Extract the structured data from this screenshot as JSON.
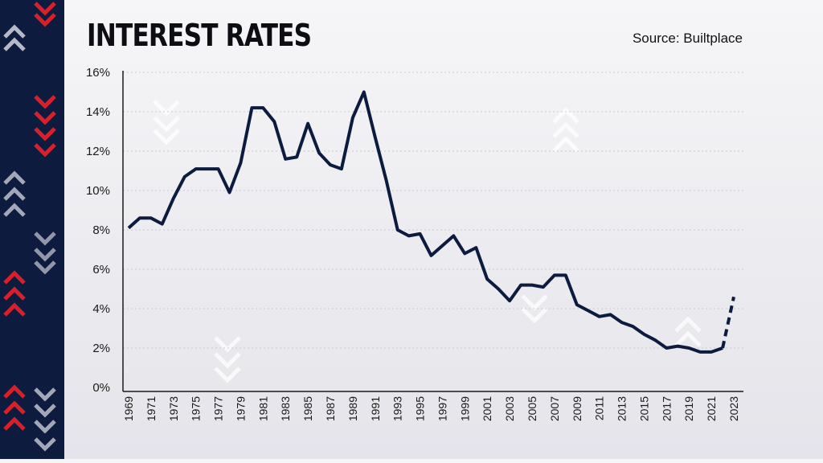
{
  "header": {
    "title": "INTEREST RATES",
    "source": "Source: Builtplace"
  },
  "colors": {
    "line": "#0d1b3e",
    "strip": "#0d1b3e",
    "chevron_red": "#d8202a",
    "chevron_light": "#c9ccd6"
  },
  "chart_data": {
    "type": "line",
    "title": "INTEREST RATES",
    "xlabel": "",
    "ylabel": "",
    "ylim": [
      0,
      16
    ],
    "xlim": [
      1969,
      2023
    ],
    "y_ticks": [
      "0%",
      "2%",
      "4%",
      "6%",
      "8%",
      "10%",
      "12%",
      "14%",
      "16%"
    ],
    "x_ticks": [
      "1969",
      "1971",
      "1973",
      "1975",
      "1977",
      "1979",
      "1981",
      "1983",
      "1985",
      "1987",
      "1989",
      "1991",
      "1993",
      "1995",
      "1997",
      "1999",
      "2001",
      "2003",
      "2005",
      "2007",
      "2009",
      "2011",
      "2013",
      "2015",
      "2017",
      "2019",
      "2021",
      "2023"
    ],
    "grid": true,
    "series": [
      {
        "style": "solid",
        "x": [
          1969,
          1970,
          1971,
          1972,
          1973,
          1974,
          1975,
          1976,
          1977,
          1978,
          1979,
          1980,
          1981,
          1982,
          1983,
          1984,
          1985,
          1986,
          1987,
          1988,
          1989,
          1990,
          1991,
          1992,
          1993,
          1994,
          1995,
          1996,
          1997,
          1998,
          1999,
          2000,
          2001,
          2002,
          2003,
          2004,
          2005,
          2006,
          2007,
          2008,
          2009,
          2010,
          2011,
          2012,
          2013,
          2014,
          2015,
          2016,
          2017,
          2018,
          2019,
          2020,
          2021,
          2022
        ],
        "y": [
          8.1,
          8.6,
          8.6,
          8.3,
          9.6,
          10.7,
          11.1,
          11.1,
          11.1,
          9.9,
          11.4,
          14.2,
          14.2,
          13.5,
          11.6,
          11.7,
          13.4,
          11.9,
          11.3,
          11.1,
          13.7,
          15.0,
          12.7,
          10.5,
          8.0,
          7.7,
          7.8,
          6.7,
          7.2,
          7.7,
          6.8,
          7.1,
          5.5,
          5.0,
          4.4,
          5.2,
          5.2,
          5.1,
          5.7,
          5.7,
          4.2,
          3.9,
          3.6,
          3.7,
          3.3,
          3.1,
          2.7,
          2.4,
          2.0,
          2.1,
          2.0,
          1.8,
          1.8,
          2.0
        ]
      },
      {
        "style": "dashed",
        "x": [
          2022,
          2023
        ],
        "y": [
          2.0,
          4.6
        ]
      }
    ]
  }
}
